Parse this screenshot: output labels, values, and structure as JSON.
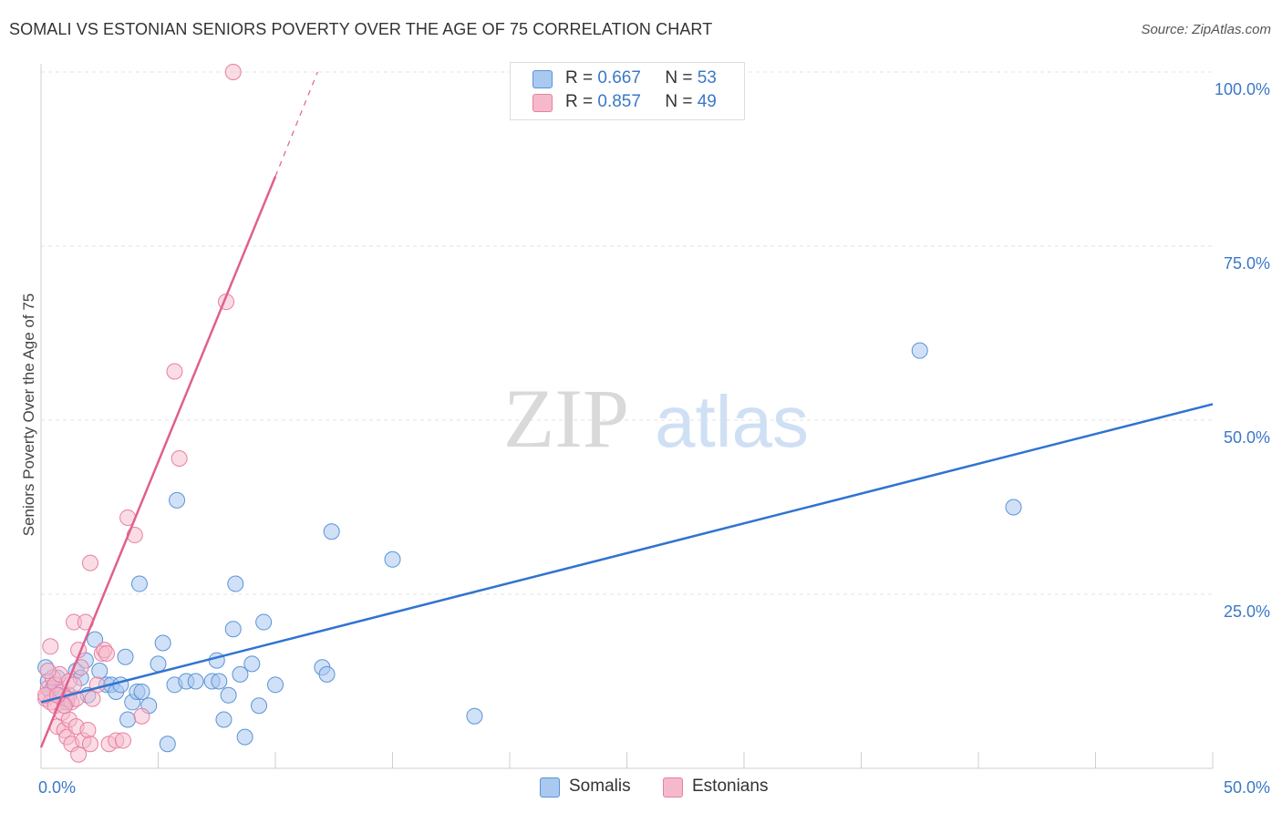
{
  "title": "SOMALI VS ESTONIAN SENIORS POVERTY OVER THE AGE OF 75 CORRELATION CHART",
  "source": "Source: ZipAtlas.com",
  "watermark": {
    "zip": "ZIP",
    "atlas": "atlas"
  },
  "legend": {
    "r_label": "R =",
    "n_label": "N =",
    "somalis": {
      "r": "0.667",
      "n": "53"
    },
    "estonians": {
      "r": "0.857",
      "n": "49"
    }
  },
  "bottom_legend": {
    "somalis": "Somalis",
    "estonians": "Estonians"
  },
  "colors": {
    "somali_fill": "#a9c9f0",
    "somali_stroke": "#5b93d6",
    "somali_line": "#2f74d0",
    "estonian_fill": "#f6b9cc",
    "estonian_stroke": "#e87fa0",
    "estonian_line": "#e0608c",
    "tick_text": "#3a78c8"
  },
  "chart_data": {
    "type": "scatter",
    "title": "SOMALI VS ESTONIAN SENIORS POVERTY OVER THE AGE OF 75 CORRELATION CHART",
    "xlabel": "",
    "ylabel": "Seniors Poverty Over the Age of 75",
    "xlim": [
      0,
      50
    ],
    "ylim": [
      0,
      100
    ],
    "x_tick_labels": [
      "0.0%",
      "50.0%"
    ],
    "y_ticks": [
      25,
      50,
      75,
      100
    ],
    "y_tick_labels": [
      "25.0%",
      "50.0%",
      "75.0%",
      "100.0%"
    ],
    "grid": true,
    "series": [
      {
        "name": "Somalis",
        "r": 0.667,
        "n": 53,
        "points": [
          [
            0.2,
            14.5
          ],
          [
            0.3,
            12.5
          ],
          [
            0.5,
            11.5
          ],
          [
            0.7,
            13
          ],
          [
            0.8,
            10.5
          ],
          [
            1.0,
            9.5
          ],
          [
            1.2,
            10.5
          ],
          [
            1.5,
            14
          ],
          [
            1.7,
            13
          ],
          [
            1.9,
            15.5
          ],
          [
            2.0,
            10.5
          ],
          [
            2.3,
            18.5
          ],
          [
            2.5,
            14
          ],
          [
            2.8,
            12
          ],
          [
            3.0,
            12
          ],
          [
            3.2,
            11
          ],
          [
            3.6,
            16
          ],
          [
            3.7,
            7
          ],
          [
            3.9,
            9.5
          ],
          [
            4.1,
            11
          ],
          [
            4.3,
            11
          ],
          [
            4.2,
            26.5
          ],
          [
            4.6,
            9
          ],
          [
            5.0,
            15
          ],
          [
            5.2,
            18
          ],
          [
            5.4,
            3.5
          ],
          [
            5.7,
            12
          ],
          [
            5.8,
            38.5
          ],
          [
            6.2,
            12.5
          ],
          [
            6.6,
            12.5
          ],
          [
            7.3,
            12.5
          ],
          [
            7.5,
            15.5
          ],
          [
            7.6,
            12.5
          ],
          [
            7.8,
            7
          ],
          [
            8.0,
            10.5
          ],
          [
            8.2,
            20
          ],
          [
            8.3,
            26.5
          ],
          [
            8.5,
            13.5
          ],
          [
            8.7,
            4.5
          ],
          [
            9.0,
            15
          ],
          [
            9.3,
            9
          ],
          [
            9.5,
            21
          ],
          [
            10.0,
            12
          ],
          [
            12.0,
            14.5
          ],
          [
            12.2,
            13.5
          ],
          [
            12.4,
            34
          ],
          [
            15.0,
            30
          ],
          [
            18.5,
            7.5
          ],
          [
            37.5,
            60
          ],
          [
            41.5,
            37.5
          ],
          [
            0.4,
            11
          ],
          [
            1.1,
            9.5
          ],
          [
            3.4,
            12
          ]
        ]
      },
      {
        "name": "Estonians",
        "r": 0.857,
        "n": 49,
        "points": [
          [
            0.2,
            10
          ],
          [
            0.3,
            11.5
          ],
          [
            0.4,
            9.5
          ],
          [
            0.4,
            17.5
          ],
          [
            0.5,
            13
          ],
          [
            0.6,
            12
          ],
          [
            0.6,
            9
          ],
          [
            0.7,
            6
          ],
          [
            0.8,
            13.5
          ],
          [
            0.9,
            11
          ],
          [
            0.9,
            8
          ],
          [
            1.0,
            5.5
          ],
          [
            1.1,
            10
          ],
          [
            1.1,
            4.5
          ],
          [
            1.2,
            12.5
          ],
          [
            1.2,
            7
          ],
          [
            1.3,
            9.5
          ],
          [
            1.3,
            3.5
          ],
          [
            1.4,
            21
          ],
          [
            1.5,
            10
          ],
          [
            1.5,
            6
          ],
          [
            1.6,
            17
          ],
          [
            1.6,
            2
          ],
          [
            1.7,
            14.5
          ],
          [
            1.8,
            4
          ],
          [
            1.9,
            21
          ],
          [
            2.0,
            5.5
          ],
          [
            2.1,
            3.5
          ],
          [
            2.1,
            29.5
          ],
          [
            2.2,
            10
          ],
          [
            2.4,
            12
          ],
          [
            2.6,
            16.5
          ],
          [
            2.7,
            17
          ],
          [
            2.8,
            16.5
          ],
          [
            2.9,
            3.5
          ],
          [
            3.2,
            4
          ],
          [
            3.5,
            4
          ],
          [
            3.7,
            36
          ],
          [
            4.0,
            33.5
          ],
          [
            4.3,
            7.5
          ],
          [
            5.7,
            57
          ],
          [
            5.9,
            44.5
          ],
          [
            7.9,
            67
          ],
          [
            8.2,
            100
          ],
          [
            0.3,
            14
          ],
          [
            1.0,
            9
          ],
          [
            1.4,
            12
          ],
          [
            0.2,
            10.5
          ],
          [
            0.7,
            10.5
          ]
        ]
      }
    ],
    "trend_lines": [
      {
        "series": "Somalis",
        "x": [
          0,
          50
        ],
        "y": [
          9.5,
          52.3
        ]
      },
      {
        "series": "Estonians",
        "x": [
          0,
          10
        ],
        "y": [
          3,
          85
        ],
        "dashed_extension": {
          "x": [
            10,
            11.8
          ],
          "y": [
            85,
            100
          ]
        }
      }
    ]
  }
}
